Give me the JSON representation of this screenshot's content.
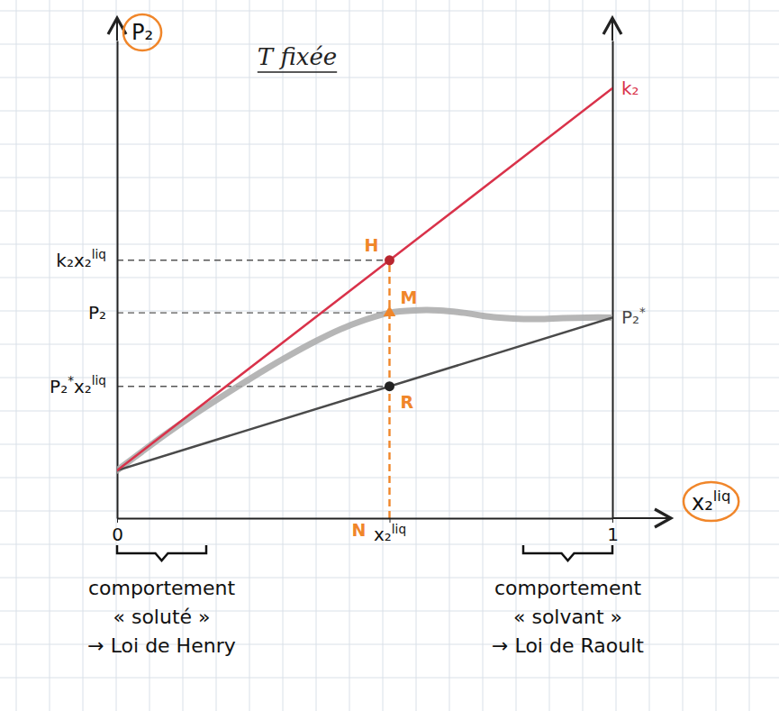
{
  "chart_data": {
    "type": "line",
    "title": "T fixée",
    "xlabel": [
      {
        "text": "x₂",
        "sup": "liq"
      }
    ],
    "ylabel": [
      {
        "text": "P₂"
      }
    ],
    "xlim": [
      0,
      1
    ],
    "xticks": [
      0,
      {
        "value": 0.55,
        "label": [
          {
            "text": "x₂",
            "sup": "liq"
          }
        ]
      },
      1
    ],
    "ylim": [
      0,
      10
    ],
    "yticks": [
      {
        "value": 5.4,
        "label": [
          {
            "text": "k₂x₂",
            "sup": "liq"
          }
        ]
      },
      {
        "value": 4.3,
        "label": [
          {
            "text": "P₂"
          }
        ]
      },
      {
        "value": 2.76,
        "label": [
          {
            "text": "P₂",
            "sup": "*"
          },
          {
            "text": "x₂",
            "sup": "liq"
          }
        ]
      }
    ],
    "y2lim": [
      0,
      10
    ],
    "y2ticks": [
      {
        "value": 9,
        "label": [
          {
            "text": "k₂"
          }
        ]
      },
      {
        "value": 4.2,
        "label": [
          {
            "text": "P₂",
            "sup": "*"
          }
        ]
      }
    ],
    "series": [
      {
        "color": "#a9a9a9",
        "line_style": "thick",
        "x": [
          0,
          0.05,
          0.1,
          0.15,
          0.2,
          0.25,
          0.3,
          0.35,
          0.4,
          0.45,
          0.5,
          0.55,
          0.6,
          0.65,
          0.7,
          0.75,
          0.8,
          0.85,
          0.9,
          0.95,
          1
        ],
        "values": [
          1,
          1.39,
          1.77,
          2.13,
          2.47,
          2.8,
          3.12,
          3.42,
          3.7,
          3.95,
          4.15,
          4.3,
          4.35,
          4.35,
          4.3,
          4.22,
          4.18,
          4.17,
          4.19,
          4.2,
          4.2
        ]
      },
      {
        "color": "#4a4a4a",
        "line_style": "solid",
        "x": [
          0,
          1
        ],
        "values": [
          1,
          4.2
        ]
      },
      {
        "color": "#d9324a",
        "line_style": "solid",
        "x": [
          0,
          1
        ],
        "values": [
          1,
          9
        ]
      }
    ],
    "points": [
      {
        "label": "H",
        "x": 0.55,
        "y": 5.4,
        "marker": "circle",
        "color": "#b8262f"
      },
      {
        "label": "M",
        "x": 0.55,
        "y": 4.3,
        "marker": "triangle",
        "color": "#f0862a"
      },
      {
        "label": "R",
        "x": 0.55,
        "y": 2.76,
        "marker": "circle",
        "color": "#222222"
      },
      {
        "label": "N",
        "x": 0.55,
        "y": 0
      }
    ],
    "regions": [
      {
        "xlim": [
          0,
          0.18
        ],
        "text": [
          "comportement",
          "« soluté »",
          "→ Loi de Henry"
        ]
      },
      {
        "xlim": [
          0.82,
          1
        ],
        "text": [
          "comportement",
          "« solvant »",
          "→ Loi de Raoult"
        ]
      }
    ]
  }
}
